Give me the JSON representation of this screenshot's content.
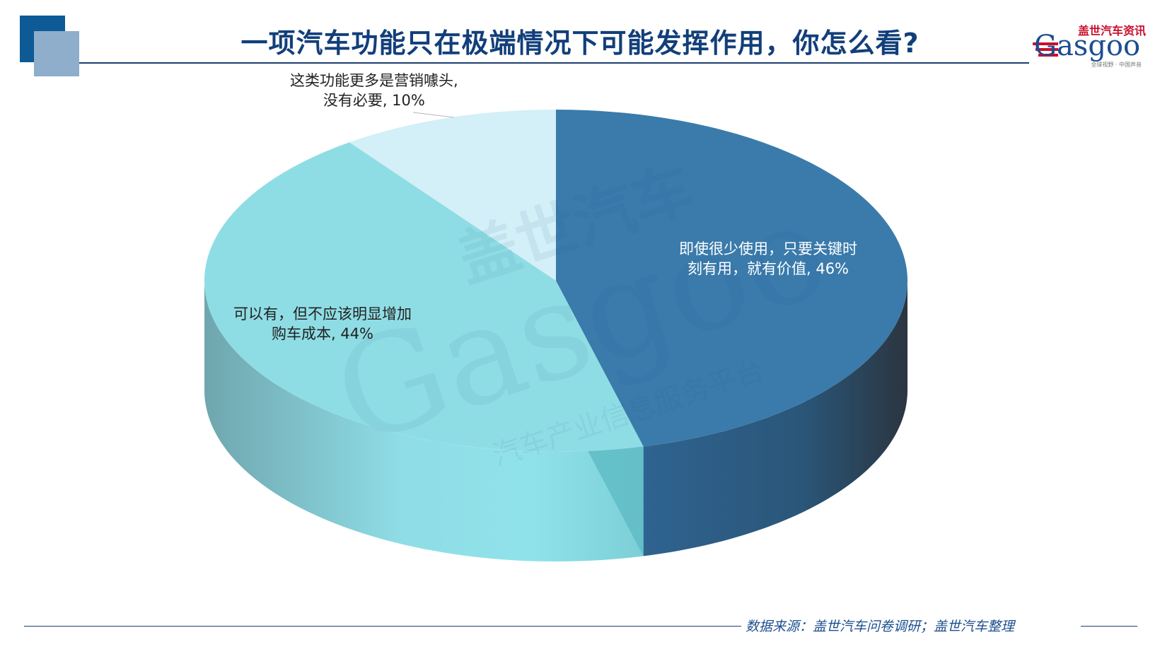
{
  "header": {
    "title": "一项汽车功能只在极端情况下可能发挥作用，你怎么看?"
  },
  "logo": {
    "brand_cn": "盖世汽车资讯",
    "brand_en": "Gasgoo",
    "tagline": "全球视野 · 中国声音"
  },
  "watermark": {
    "text_cn": "盖世汽车",
    "text_en": "Gasgoo",
    "text_sub": "汽车产业信息服务平台"
  },
  "footer": {
    "source": "数据来源：盖世汽车问卷调研；盖世汽车整理"
  },
  "colors": {
    "title": "#123f7a",
    "slice_1": "#3a7bab",
    "slice_2": "#8fdde4",
    "slice_3": "#d3eff7"
  },
  "chart_data": {
    "type": "pie",
    "style": "3d",
    "title": "一项汽车功能只在极端情况下可能发挥作用，你怎么看?",
    "categories": [
      "即使很少使用，只要关键时刻有用，就有价值",
      "可以有，但不应该明显增加购车成本",
      "这类功能更多是营销噱头，没有必要"
    ],
    "values": [
      46,
      44,
      10
    ],
    "unit": "%",
    "labels": [
      {
        "line1": "即使很少使用，只要关键时",
        "line2": "刻有用，就有价值, 46%"
      },
      {
        "line1": "可以有，但不应该明显增加",
        "line2": "购车成本, 44%"
      },
      {
        "line1": "这类功能更多是营销噱头,",
        "line2": "没有必要, 10%"
      }
    ]
  }
}
